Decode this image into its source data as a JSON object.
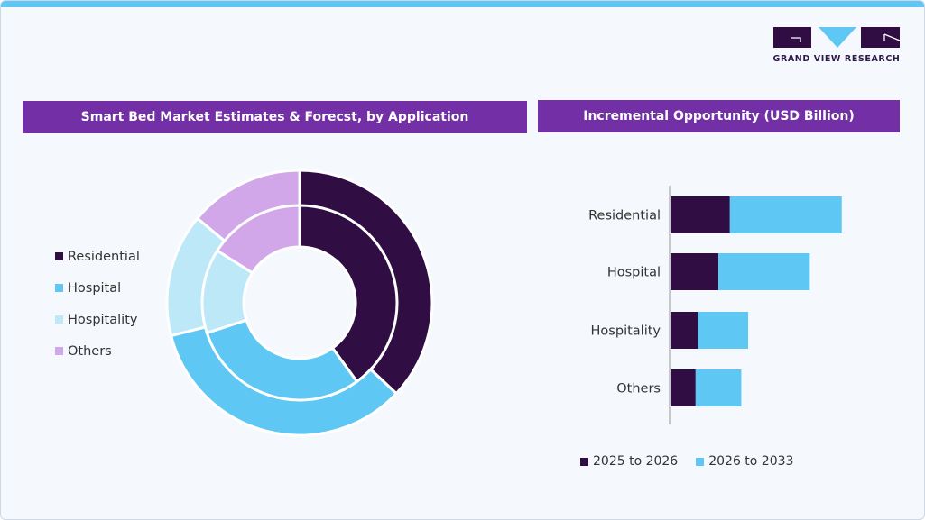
{
  "brand": {
    "name": "GRAND VIEW RESEARCH"
  },
  "colors": {
    "residential": "#300d43",
    "hospital": "#5ec7f3",
    "hospitality": "#bce8f8",
    "others": "#d1a7e9",
    "header": "#7330a6",
    "accent": "#5ec7f3"
  },
  "left_panel": {
    "title": "Smart Bed Market Estimates & Forecst, by Application"
  },
  "right_panel": {
    "title": "Incremental Opportunity (USD Billion)"
  },
  "chart_data": [
    {
      "type": "pie",
      "subtype": "nested-donut",
      "title": "Smart Bed Market Estimates & Forecst, by Application",
      "categories": [
        "Residential",
        "Hospital",
        "Hospitality",
        "Others"
      ],
      "series": [
        {
          "name": "outer ring",
          "values": [
            37,
            34,
            15,
            14
          ]
        },
        {
          "name": "inner ring",
          "values": [
            40,
            30,
            14,
            16
          ]
        }
      ]
    },
    {
      "type": "bar",
      "orientation": "horizontal",
      "stacked": true,
      "title": "Incremental Opportunity (USD Billion)",
      "categories": [
        "Residential",
        "Hospital",
        "Hospitality",
        "Others"
      ],
      "series": [
        {
          "name": "2025 to 2026",
          "values": [
            2.6,
            2.1,
            1.2,
            1.1
          ]
        },
        {
          "name": "2026 to 2033",
          "values": [
            4.9,
            4.0,
            2.2,
            2.0
          ]
        }
      ],
      "xlim": [
        0,
        8
      ]
    }
  ]
}
